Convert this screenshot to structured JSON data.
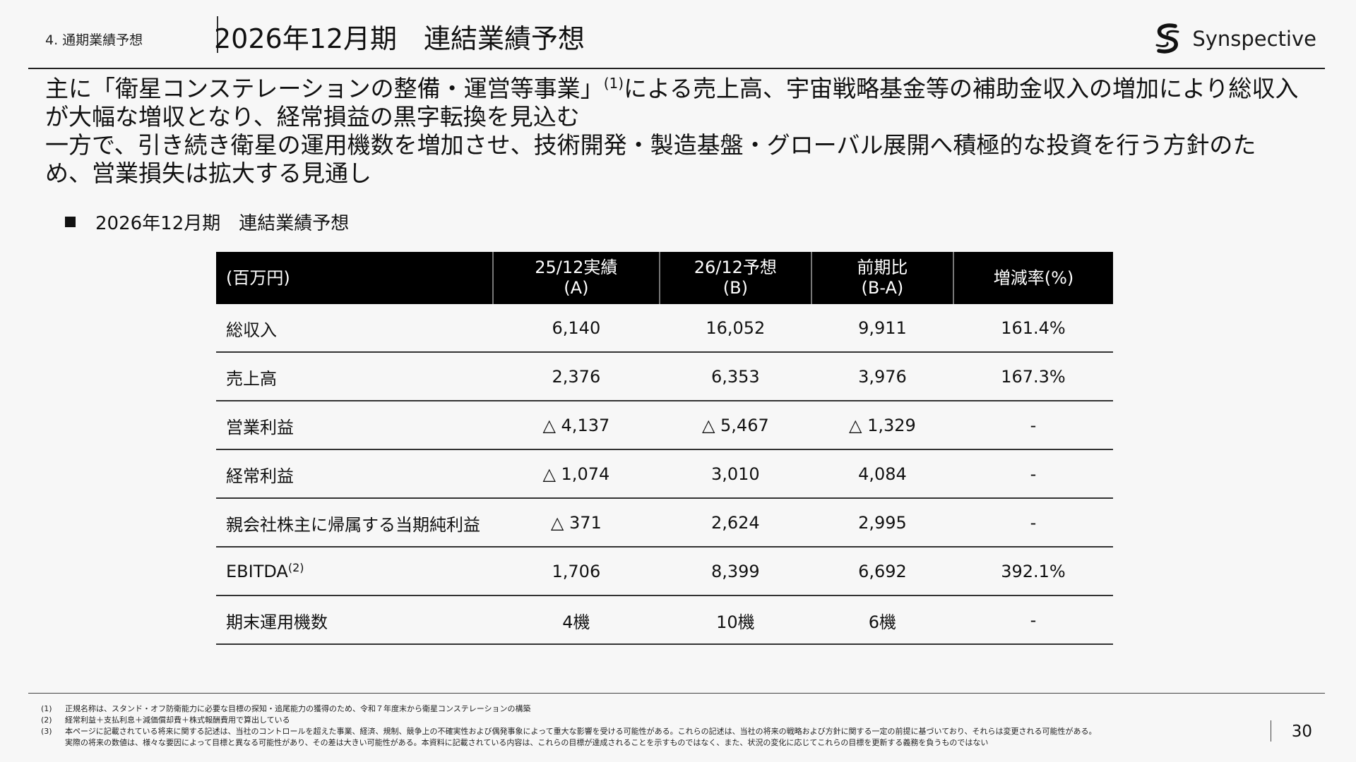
{
  "header": {
    "section": "4. 通期業績予想",
    "title": "2026年12月期　連結業績予想",
    "logo_text": "Synspective"
  },
  "summary": {
    "line1_before": "主に「衛星コンステレーションの整備・運営等事業」",
    "line1_sup": "(1)",
    "line1_after": "による売上高、宇宙戦略基金等の補助金収入の増加により総収入が大幅な増収となり、経常損益の黒字転換を見込む",
    "line2": "一方で、引き続き衛星の運用機数を増加させ、技術開発・製造基盤・グローバル展開へ積極的な投資を行う方針のため、営業損失は拡大する見通し"
  },
  "subheading": "2026年12月期　連結業績予想",
  "table": {
    "headers": [
      {
        "line1": "(百万円)",
        "line2": ""
      },
      {
        "line1": "25/12実績",
        "line2": "(A)"
      },
      {
        "line1": "26/12予想",
        "line2": "(B)"
      },
      {
        "line1": "前期比",
        "line2": "(B-A)"
      },
      {
        "line1": "増減率(%)",
        "line2": ""
      }
    ],
    "rows": [
      {
        "label": "総収入",
        "sup": "",
        "a": "6,140",
        "b": "16,052",
        "diff": "9,911",
        "rate": "161.4%"
      },
      {
        "label": "売上高",
        "sup": "",
        "a": "2,376",
        "b": "6,353",
        "diff": "3,976",
        "rate": "167.3%"
      },
      {
        "label": "営業利益",
        "sup": "",
        "a": "△ 4,137",
        "b": "△ 5,467",
        "diff": "△ 1,329",
        "rate": "-"
      },
      {
        "label": "経常利益",
        "sup": "",
        "a": "△ 1,074",
        "b": "3,010",
        "diff": "4,084",
        "rate": "-"
      },
      {
        "label": "親会社株主に帰属する当期純利益",
        "sup": "",
        "a": "△ 371",
        "b": "2,624",
        "diff": "2,995",
        "rate": "-"
      },
      {
        "label": "EBITDA",
        "sup": "(2)",
        "a": "1,706",
        "b": "8,399",
        "diff": "6,692",
        "rate": "392.1%"
      },
      {
        "label": "期末運用機数",
        "sup": "",
        "a": "4機",
        "b": "10機",
        "diff": "6機",
        "rate": "-"
      }
    ]
  },
  "footnotes": [
    {
      "num": "(1)",
      "text": "正規名称は、スタンド・オフ防衛能力に必要な目標の探知・追尾能力の獲得のため、令和７年度末から衛星コンステレーションの構築"
    },
    {
      "num": "(2)",
      "text": "経常利益＋支払利息＋減価償却費＋株式報酬費用で算出している"
    },
    {
      "num": "(3)",
      "text": "本ページに記載されている将来に関する記述は、当社のコントロールを超えた事業、経済、規制、競争上の不確実性および偶発事象によって重大な影響を受ける可能性がある。これらの記述は、当社の将来の戦略および方針に関する一定の前提に基づいており、それらは変更される可能性がある。"
    },
    {
      "num": "",
      "text": "実際の将来の数値は、様々な要因によって目標と異なる可能性があり、その差は大きい可能性がある。本資料に記載されている内容は、これらの目標が達成されることを示すものではなく、また、状況の変化に応じてこれらの目標を更新する義務を負うものではない"
    }
  ],
  "page_number": "30",
  "icons": {
    "logo": "synspective-logo-icon",
    "bullet": "square-bullet-icon"
  }
}
